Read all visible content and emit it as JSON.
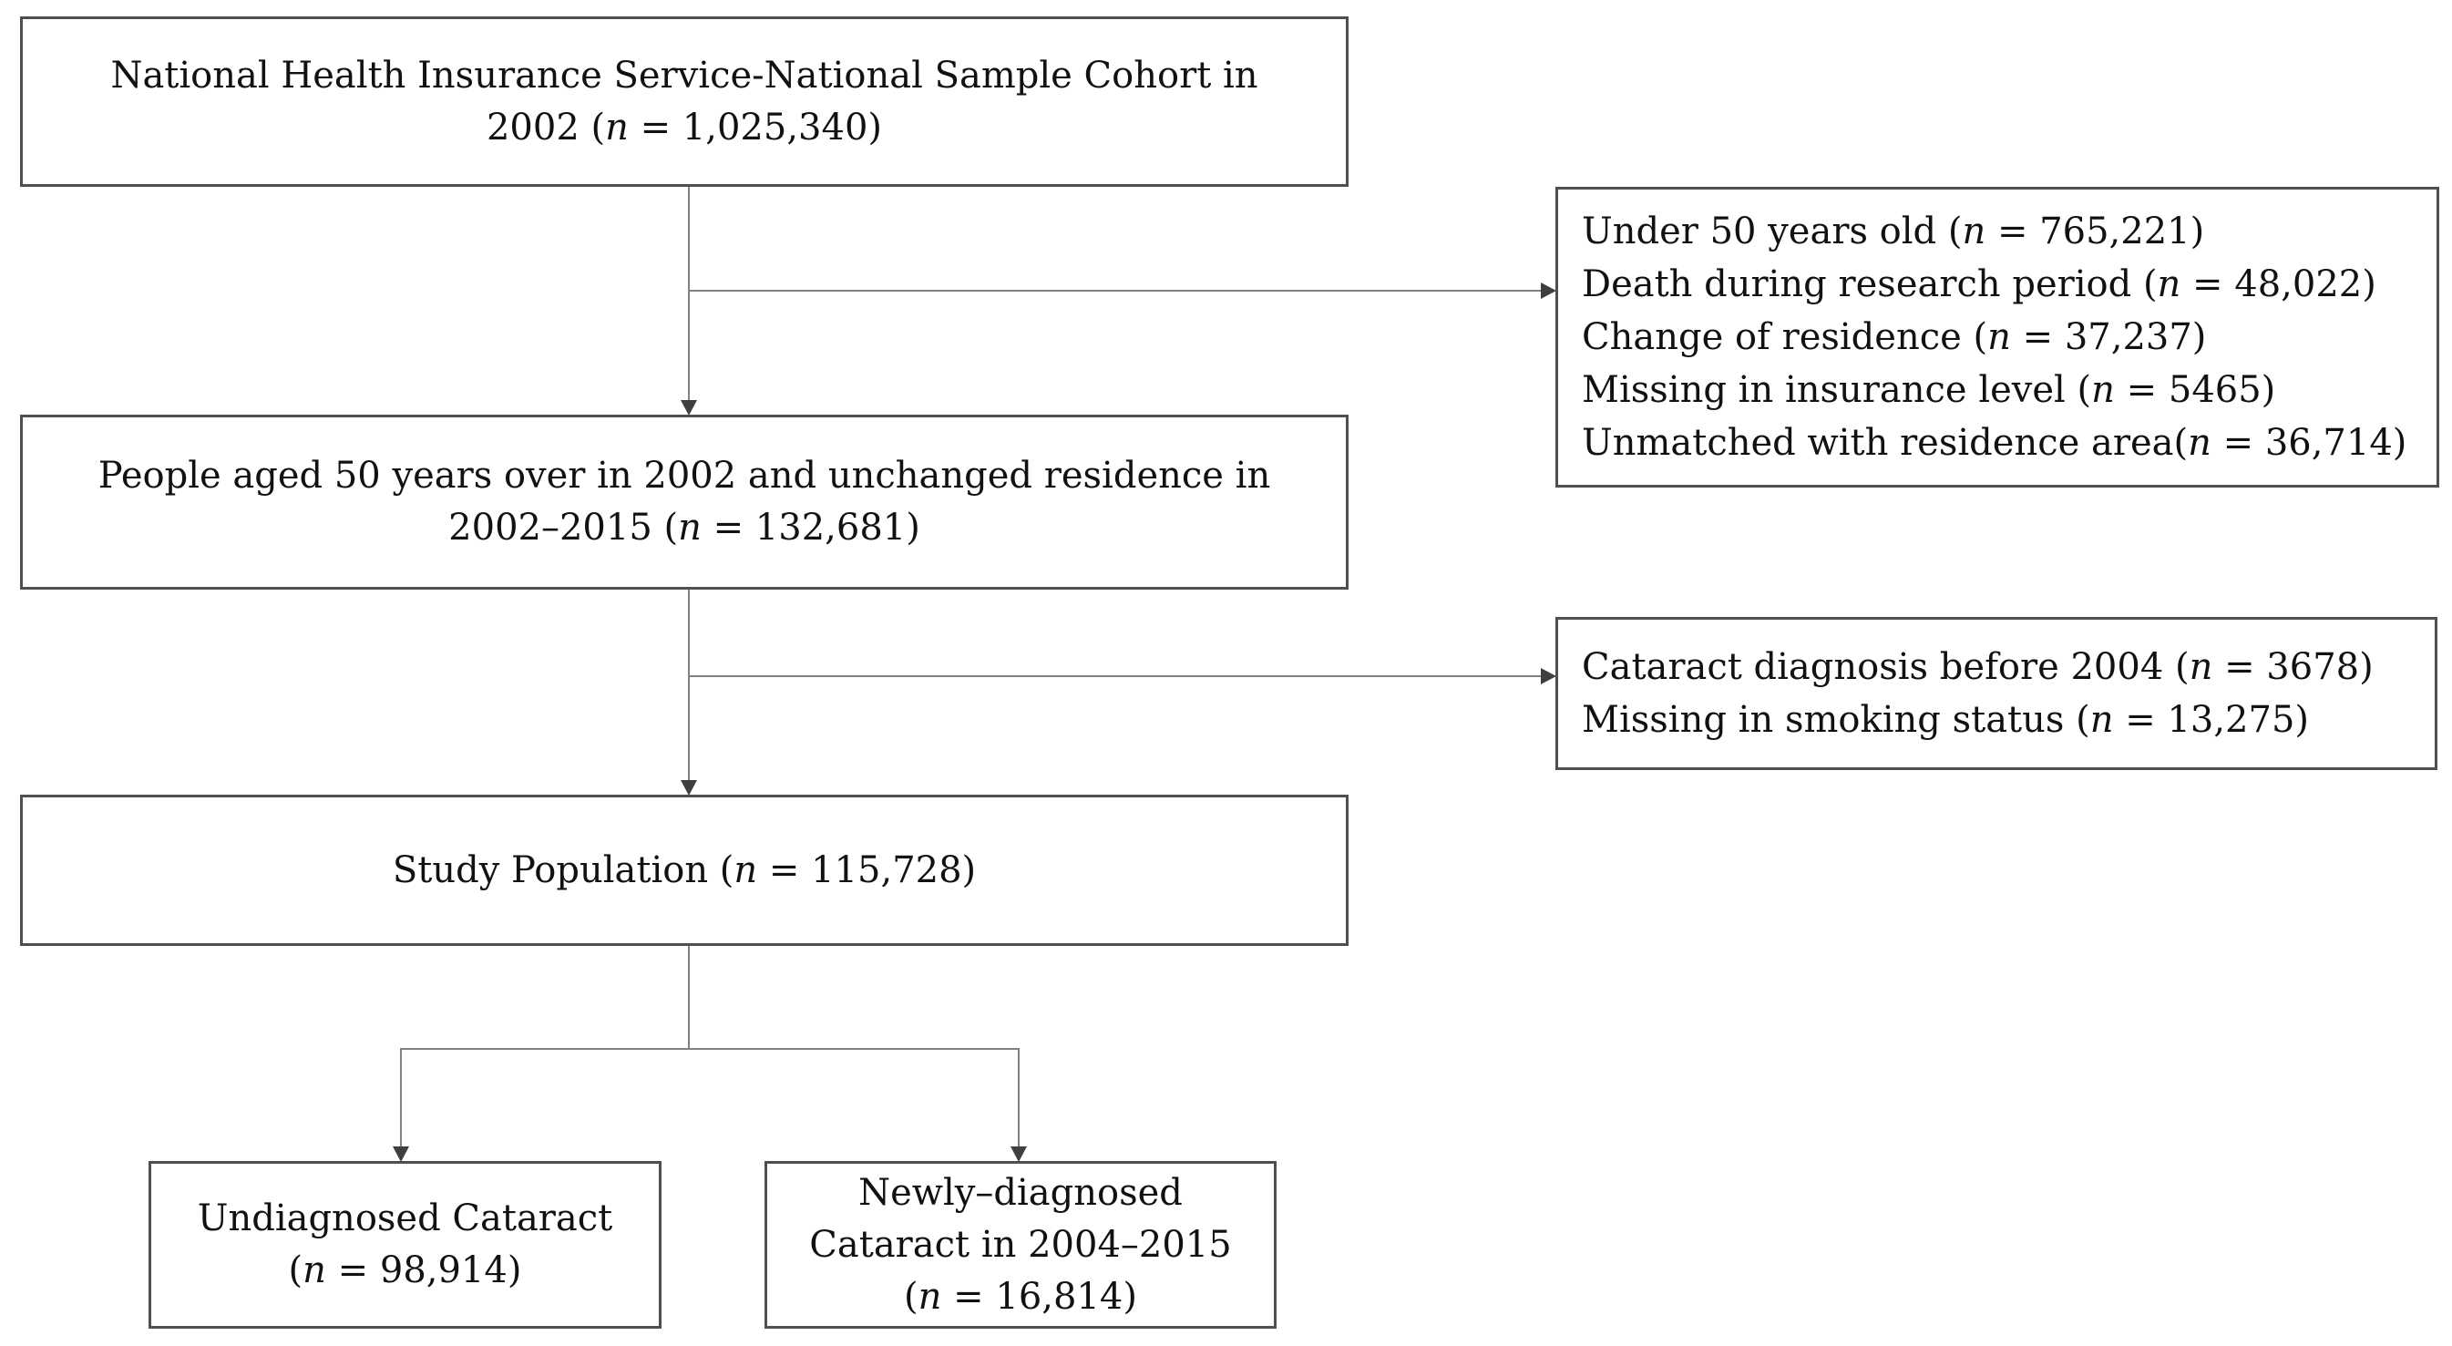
{
  "colors": {
    "border": "#4f4f4f",
    "line": "#808080",
    "arrow": "#3f3f3f",
    "text": "#111111",
    "background": "#ffffff"
  },
  "boxes": {
    "cohort": {
      "line1": "National Health Insurance Service-National Sample Cohort in",
      "line2": {
        "pre": "2002 (",
        "n": "n",
        "post": " = 1,025,340)"
      }
    },
    "exclusion1": {
      "lines": [
        {
          "pre": "Under 50 years old (",
          "n": "n",
          "post": " = 765,221)"
        },
        {
          "pre": "Death during research period (",
          "n": "n",
          "post": " = 48,022)"
        },
        {
          "pre": "Change of residence (",
          "n": "n",
          "post": " = 37,237)"
        },
        {
          "pre": "Missing in insurance level (",
          "n": "n",
          "post": " = 5465)"
        },
        {
          "pre": "Unmatched with residence area(",
          "n": "n",
          "post": " = 36,714)"
        }
      ]
    },
    "aged50": {
      "line1": "People aged 50 years over in 2002 and unchanged residence in",
      "line2": {
        "pre": "2002–2015 (",
        "n": "n",
        "post": " = 132,681)"
      }
    },
    "exclusion2": {
      "lines": [
        {
          "pre": "Cataract diagnosis before 2004 (",
          "n": "n",
          "post": " = 3678)"
        },
        {
          "pre": "Missing in smoking status (",
          "n": "n",
          "post": " = 13,275)"
        }
      ]
    },
    "study": {
      "line1": {
        "pre": "Study Population (",
        "n": "n",
        "post": " = 115,728)"
      }
    },
    "undiagnosed": {
      "line1": "Undiagnosed Cataract",
      "line2": {
        "pre": "(",
        "n": "n",
        "post": " = 98,914)"
      }
    },
    "newly": {
      "line1": "Newly–diagnosed",
      "line2": "Cataract in 2004–2015",
      "line3": {
        "pre": "(",
        "n": "n",
        "post": " = 16,814)"
      }
    }
  }
}
